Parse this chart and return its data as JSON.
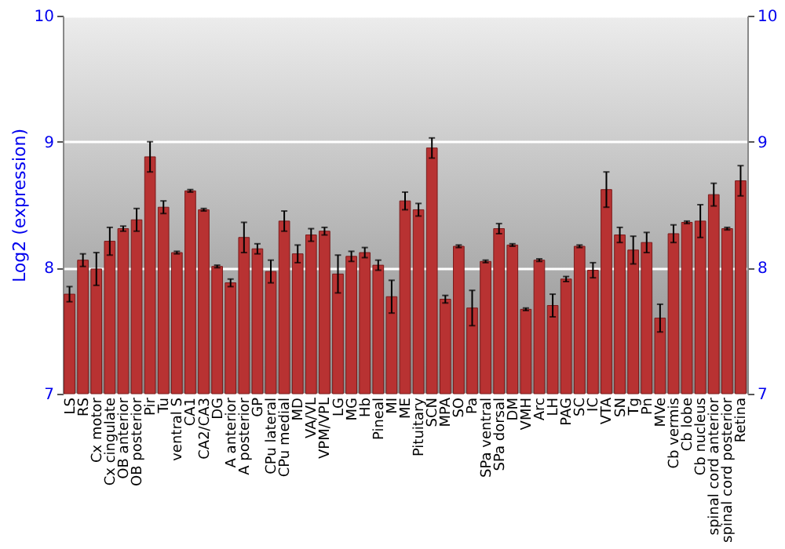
{
  "chart_data": {
    "type": "bar",
    "ylabel": "Log2 (expression)",
    "categories": [
      "LS",
      "RS",
      "Cx motor",
      "Cx cingulate",
      "OB anterior",
      "OB posterior",
      "Pir",
      "Tu",
      "ventral S",
      "CA1",
      "CA2/CA3",
      "DG",
      "A anterior",
      "A posterior",
      "GP",
      "CPu lateral",
      "CPu medial",
      "MD",
      "VA/VL",
      "VPM/VPL",
      "LG",
      "MG",
      "Hb",
      "Pineal",
      "MI",
      "ME",
      "Pituitary",
      "SCN",
      "MPA",
      "SO",
      "Pa",
      "SPa ventral",
      "SPa dorsal",
      "DM",
      "VMH",
      "Arc",
      "LH",
      "PAG",
      "SC",
      "IC",
      "VTA",
      "SN",
      "Tg",
      "Pn",
      "MVe",
      "Cb vermis",
      "Cb lobe",
      "Cb nucleus",
      "spinal cord anterior",
      "spinal cord posterior",
      "Retina"
    ],
    "values": [
      7.79,
      8.06,
      7.99,
      8.21,
      8.31,
      8.38,
      8.88,
      8.48,
      8.12,
      8.61,
      8.46,
      8.01,
      7.88,
      8.24,
      8.15,
      7.97,
      8.37,
      8.11,
      8.26,
      8.29,
      7.95,
      8.09,
      8.12,
      8.02,
      7.77,
      8.53,
      8.46,
      8.95,
      7.75,
      8.17,
      7.68,
      8.05,
      8.31,
      8.18,
      7.67,
      8.06,
      7.7,
      7.91,
      8.17,
      7.98,
      8.62,
      8.26,
      8.14,
      8.2,
      7.6,
      8.27,
      8.36,
      8.37,
      8.58,
      8.31,
      8.69
    ],
    "errors": [
      0.06,
      0.05,
      0.13,
      0.11,
      0.02,
      0.09,
      0.12,
      0.05,
      0.01,
      0.01,
      0.01,
      0.01,
      0.03,
      0.12,
      0.04,
      0.09,
      0.08,
      0.07,
      0.05,
      0.03,
      0.15,
      0.04,
      0.04,
      0.04,
      0.13,
      0.07,
      0.05,
      0.08,
      0.03,
      0.01,
      0.14,
      0.01,
      0.04,
      0.01,
      0.01,
      0.01,
      0.09,
      0.02,
      0.01,
      0.06,
      0.14,
      0.06,
      0.11,
      0.08,
      0.11,
      0.07,
      0.01,
      0.13,
      0.09,
      0.01,
      0.12
    ],
    "color": "#b83232",
    "ylim": [
      7,
      10
    ],
    "yticks": [
      7,
      8,
      9,
      10
    ],
    "y2lim": [
      7,
      10
    ],
    "y2ticks": [
      7,
      8,
      9,
      10
    ],
    "grid": "y"
  }
}
